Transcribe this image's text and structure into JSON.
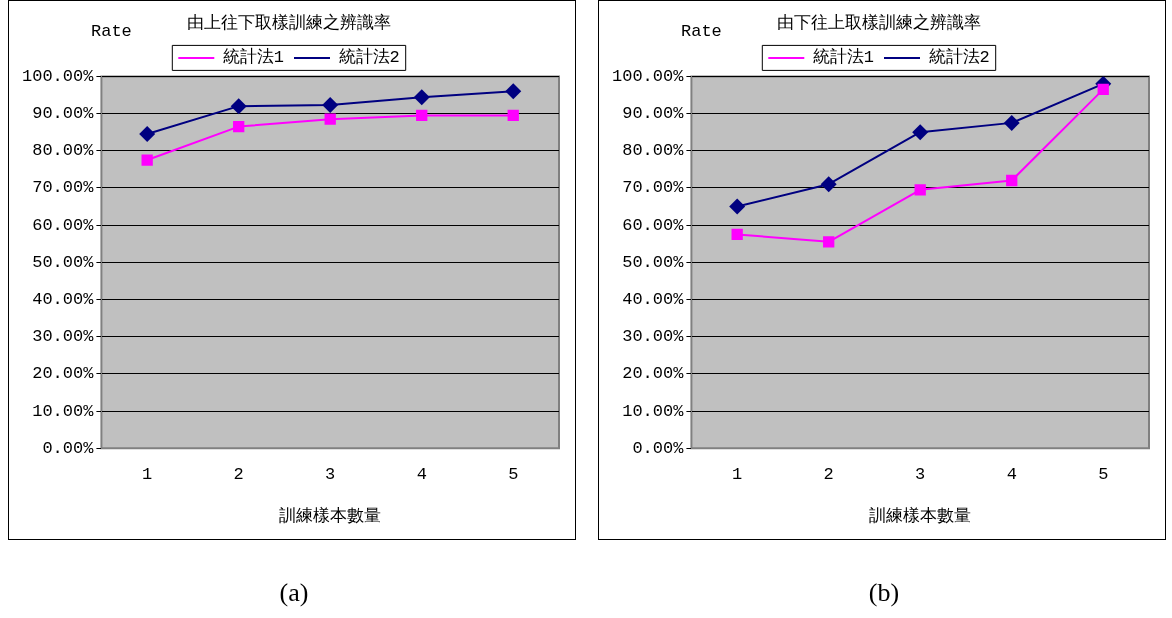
{
  "chart_data": [
    {
      "type": "line",
      "title": "由上往下取樣訓練之辨識率",
      "xlabel": "訓練樣本數量",
      "ylabel": "Rate",
      "categories": [
        "1",
        "2",
        "3",
        "4",
        "5"
      ],
      "ylim": [
        0,
        100
      ],
      "yticks": [
        {
          "value": 0,
          "label": "0.00%"
        },
        {
          "value": 10,
          "label": "10.00%"
        },
        {
          "value": 20,
          "label": "20.00%"
        },
        {
          "value": 30,
          "label": "30.00%"
        },
        {
          "value": 40,
          "label": "40.00%"
        },
        {
          "value": 50,
          "label": "50.00%"
        },
        {
          "value": 60,
          "label": "60.00%"
        },
        {
          "value": 70,
          "label": "70.00%"
        },
        {
          "value": 80,
          "label": "80.00%"
        },
        {
          "value": 90,
          "label": "90.00%"
        },
        {
          "value": 100,
          "label": "100.00%"
        }
      ],
      "grid": "y",
      "legend": "top",
      "annotations": [
        "(a)"
      ],
      "series": [
        {
          "name": "統計法1",
          "color": "#ff00ff",
          "marker": "square",
          "values": [
            77.5,
            86.5,
            88.5,
            89.5,
            89.5
          ]
        },
        {
          "name": "統計法2",
          "color": "#000080",
          "marker": "diamond",
          "values": [
            84.5,
            92,
            92.3,
            94.4,
            96
          ]
        }
      ]
    },
    {
      "type": "line",
      "title": "由下往上取樣訓練之辨識率",
      "xlabel": "訓練樣本數量",
      "ylabel": "Rate",
      "categories": [
        "1",
        "2",
        "3",
        "4",
        "5"
      ],
      "ylim": [
        0,
        100
      ],
      "yticks": [
        {
          "value": 0,
          "label": "0.00%"
        },
        {
          "value": 10,
          "label": "10.00%"
        },
        {
          "value": 20,
          "label": "20.00%"
        },
        {
          "value": 30,
          "label": "30.00%"
        },
        {
          "value": 40,
          "label": "40.00%"
        },
        {
          "value": 50,
          "label": "50.00%"
        },
        {
          "value": 60,
          "label": "60.00%"
        },
        {
          "value": 70,
          "label": "70.00%"
        },
        {
          "value": 80,
          "label": "80.00%"
        },
        {
          "value": 90,
          "label": "90.00%"
        },
        {
          "value": 100,
          "label": "100.00%"
        }
      ],
      "grid": "y",
      "legend": "top",
      "annotations": [
        "(b)"
      ],
      "series": [
        {
          "name": "統計法1",
          "color": "#ff00ff",
          "marker": "square",
          "values": [
            57.5,
            55.5,
            69.5,
            72,
            96.5
          ]
        },
        {
          "name": "統計法2",
          "color": "#000080",
          "marker": "diamond",
          "values": [
            65,
            71,
            85,
            87.5,
            98
          ]
        }
      ]
    }
  ]
}
